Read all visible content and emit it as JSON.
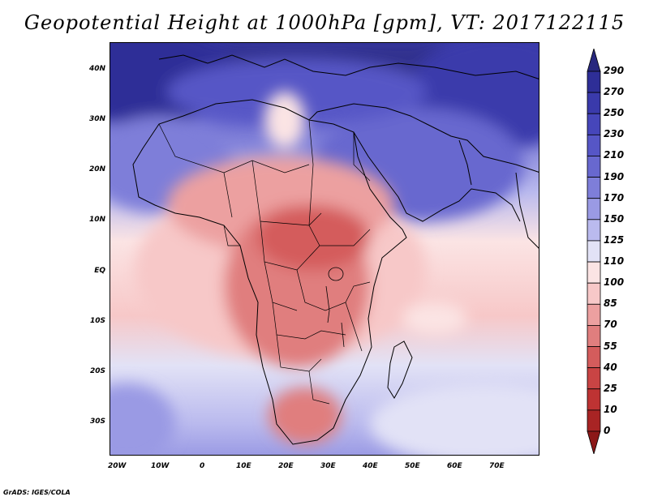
{
  "title": "Geopotential Height at 1000hPa [gpm], VT: 2017122115",
  "credit": "GrADS: IGES/COLA",
  "map": {
    "region": "Africa and western Indian Ocean",
    "lon_range": [
      -23,
      80
    ],
    "lat_range": [
      -37,
      45
    ],
    "x_ticks": [
      "20W",
      "10W",
      "0",
      "10E",
      "20E",
      "30E",
      "40E",
      "50E",
      "60E",
      "70E"
    ],
    "y_ticks": [
      "40N",
      "30N",
      "20N",
      "10N",
      "EQ",
      "10S",
      "20S",
      "30S"
    ]
  },
  "colorbar": {
    "labels": [
      "290",
      "270",
      "250",
      "230",
      "210",
      "190",
      "170",
      "150",
      "125",
      "110",
      "100",
      "85",
      "70",
      "55",
      "40",
      "25",
      "10",
      "0"
    ],
    "colors": [
      "#28287e",
      "#2e2e97",
      "#3a3aab",
      "#4646ba",
      "#5656c6",
      "#6868cf",
      "#7e7ed9",
      "#9a9ae4",
      "#babaee",
      "#e2e2f6",
      "#fbe4e4",
      "#f7c8c8",
      "#eca0a0",
      "#e07e7e",
      "#d45c5c",
      "#c94444",
      "#be3333",
      "#a82424",
      "#8c1818"
    ]
  }
}
